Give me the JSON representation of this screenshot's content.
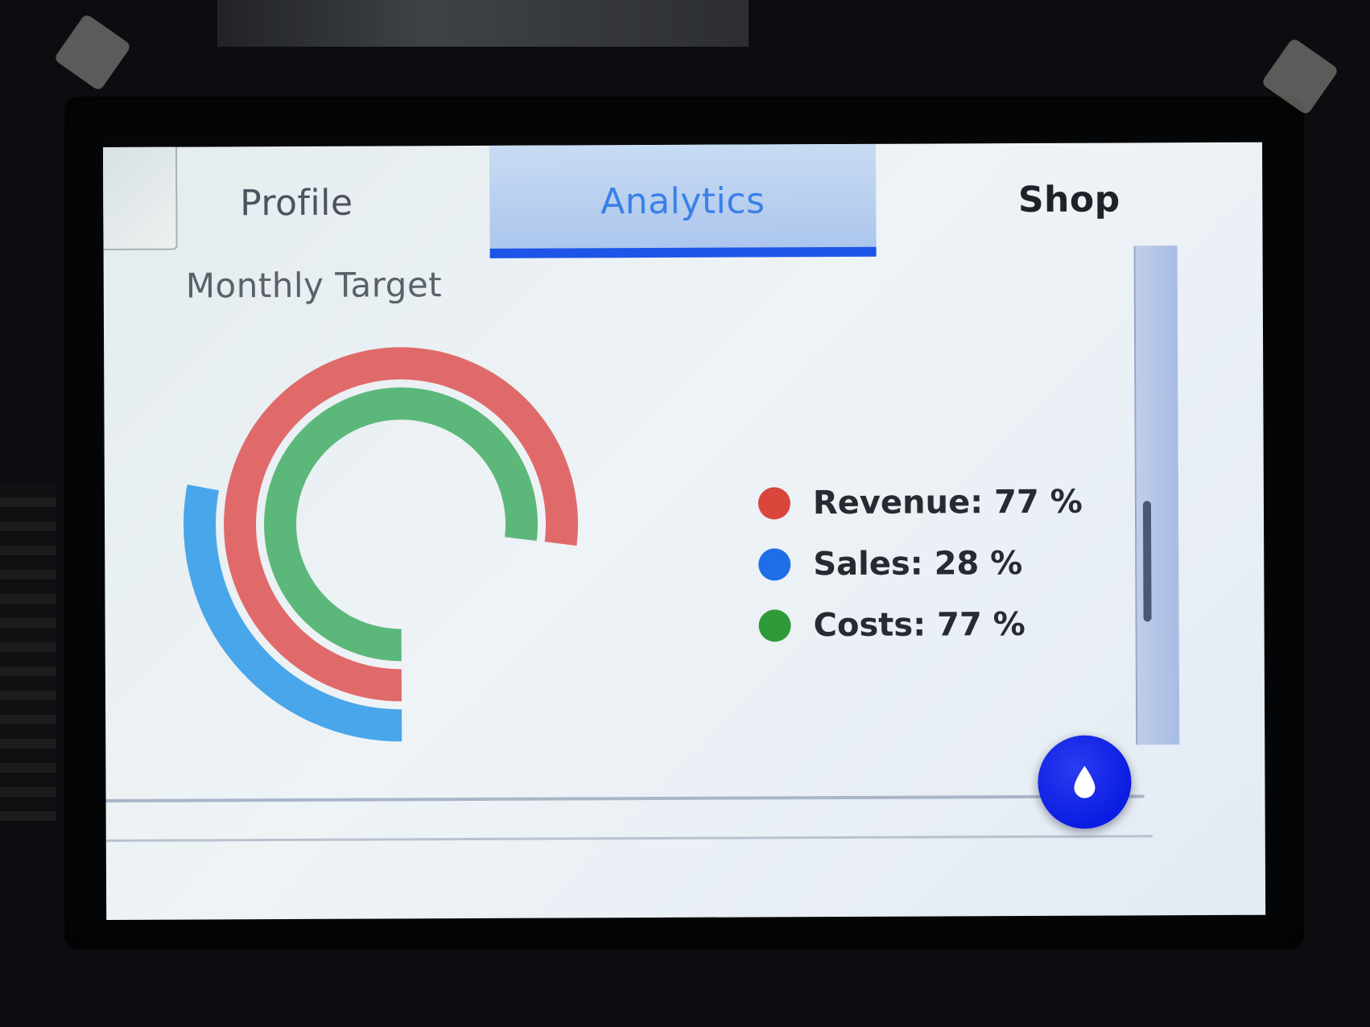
{
  "tabs": [
    {
      "label": "Profile",
      "active": false
    },
    {
      "label": "Analytics",
      "active": true
    },
    {
      "label": "Shop",
      "active": false
    }
  ],
  "content": {
    "title": "Monthly Target"
  },
  "chart_data": {
    "type": "arc",
    "series": [
      {
        "name": "Revenue",
        "value": 77,
        "color": "#e06a6a"
      },
      {
        "name": "Sales",
        "value": 28,
        "color": "#4aa6ea"
      },
      {
        "name": "Costs",
        "value": 77,
        "color": "#5cb87a"
      }
    ]
  },
  "legend": [
    {
      "label": "Revenue: 77 %",
      "color": "#d8463c"
    },
    {
      "label": "Sales: 28 %",
      "color": "#1f6ee8"
    },
    {
      "label": "Costs: 77 %",
      "color": "#2f9a3a"
    }
  ],
  "fab": {
    "icon": "water-drop-icon"
  }
}
